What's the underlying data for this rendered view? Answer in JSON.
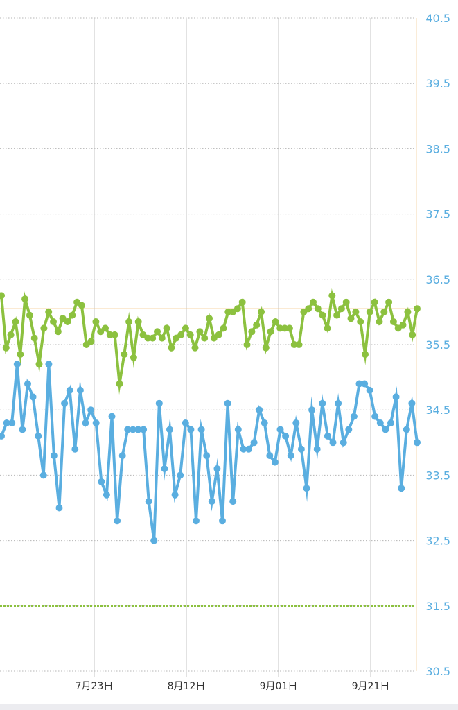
{
  "chart_data": {
    "type": "line",
    "ylim": [
      30.5,
      40.5
    ],
    "y_ticks": [
      "40.5",
      "39.5",
      "38.5",
      "37.5",
      "36.5",
      "35.5",
      "34.5",
      "33.5",
      "32.5",
      "31.5",
      "30.5"
    ],
    "x_ticks": [
      "7月23日",
      "8月12日",
      "9月01日",
      "9月21日"
    ],
    "reference_lines": [
      36.05,
      31.5
    ],
    "grid": true,
    "colors": {
      "series_upper": "#8cc13f",
      "series_lower": "#5aaee0",
      "ref_upper": "#f5c98a",
      "ref_lower": "#8cc13f"
    },
    "series": [
      {
        "values": [
          36.25,
          35.45,
          35.65,
          35.85,
          35.35,
          36.2,
          35.95,
          35.6,
          35.2,
          35.75,
          36.0,
          35.85,
          35.7,
          35.9,
          35.85,
          35.95,
          36.15,
          36.1,
          35.5,
          35.55,
          35.85,
          35.7,
          35.75,
          35.65,
          35.65,
          34.9,
          35.35,
          35.85,
          35.3,
          35.85,
          35.65,
          35.6,
          35.6,
          35.7,
          35.6,
          35.75,
          35.45,
          35.6,
          35.65,
          35.75,
          35.65,
          35.45,
          35.7,
          35.6,
          35.9,
          35.6,
          35.65,
          35.75,
          36.0,
          36.0,
          36.05,
          36.15,
          35.5,
          35.7,
          35.8,
          36.0,
          35.45,
          35.7,
          35.85,
          35.75,
          35.75,
          35.75,
          35.5,
          35.5,
          36.0,
          36.05,
          36.15,
          36.05,
          35.95,
          35.75,
          36.25,
          35.95,
          36.05,
          36.15,
          35.9,
          36.0,
          35.85,
          35.35,
          36.0,
          36.15,
          35.85,
          36.0,
          36.15,
          35.85,
          35.75,
          35.8,
          36.0,
          35.65,
          36.05
        ]
      },
      {
        "values": [
          34.1,
          34.3,
          34.3,
          35.2,
          34.2,
          34.9,
          34.7,
          34.1,
          33.5,
          35.2,
          33.8,
          33.0,
          34.6,
          34.8,
          33.9,
          34.8,
          34.3,
          34.5,
          34.3,
          33.4,
          33.2,
          34.4,
          32.8,
          33.8,
          34.2,
          34.2,
          34.2,
          34.2,
          33.1,
          32.5,
          34.6,
          33.6,
          34.2,
          33.2,
          33.5,
          34.3,
          34.2,
          32.8,
          34.2,
          33.8,
          33.1,
          33.6,
          32.8,
          34.6,
          33.1,
          34.2,
          33.9,
          33.9,
          34.0,
          34.5,
          34.3,
          33.8,
          33.7,
          34.2,
          34.1,
          33.8,
          34.3,
          33.9,
          33.3,
          34.5,
          33.9,
          34.6,
          34.1,
          34.0,
          34.6,
          34.0,
          34.2,
          34.4,
          34.9,
          34.9,
          34.8,
          34.4,
          34.3,
          34.2,
          34.3,
          34.7,
          33.3,
          34.2,
          34.6,
          34.0
        ]
      }
    ]
  }
}
